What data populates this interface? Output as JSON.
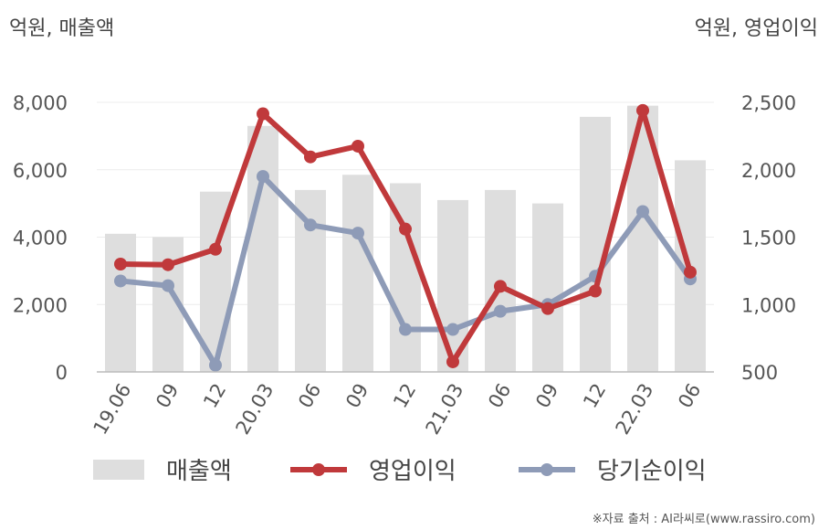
{
  "chart_data": {
    "type": "bar+line",
    "left_unit": "억원, 매출액",
    "right_unit": "억원, 영업이익",
    "categories": [
      "19.06",
      "09",
      "12",
      "20.03",
      "06",
      "09",
      "12",
      "21.03",
      "06",
      "09",
      "12",
      "22.03",
      "06"
    ],
    "left_axis": {
      "ylim": [
        0,
        8000
      ],
      "ticks": [
        0,
        2000,
        4000,
        6000,
        8000
      ],
      "tick_labels": [
        "0",
        "2,000",
        "4,000",
        "6,000",
        "8,000"
      ]
    },
    "right_axis": {
      "ylim": [
        500,
        2500
      ],
      "ticks": [
        500,
        1000,
        1500,
        2000,
        2500
      ],
      "tick_labels": [
        "500",
        "1,000",
        "1,500",
        "2,000",
        "2,500"
      ]
    },
    "series": [
      {
        "name": "매출액",
        "kind": "bar",
        "axis": "left",
        "color": "#dedede",
        "values": [
          4100,
          4000,
          5350,
          7300,
          5400,
          5850,
          5600,
          5100,
          5400,
          5000,
          7570,
          7900,
          6280
        ]
      },
      {
        "name": "영업이익",
        "kind": "line",
        "axis": "right",
        "color": "#c0393b",
        "values": [
          1300,
          1295,
          1410,
          2415,
          2095,
          2175,
          1560,
          575,
          1135,
          970,
          1100,
          2440,
          1240
        ]
      },
      {
        "name": "당기순이익",
        "kind": "line",
        "axis": "right",
        "color": "#8e9bb7",
        "values": [
          1175,
          1140,
          550,
          1950,
          1590,
          1530,
          815,
          815,
          950,
          1000,
          1210,
          1690,
          1190
        ]
      }
    ],
    "grid": true,
    "legend": "bottom"
  },
  "credit": "※자료 출처 : AI라씨로(www.rassiro.com)"
}
